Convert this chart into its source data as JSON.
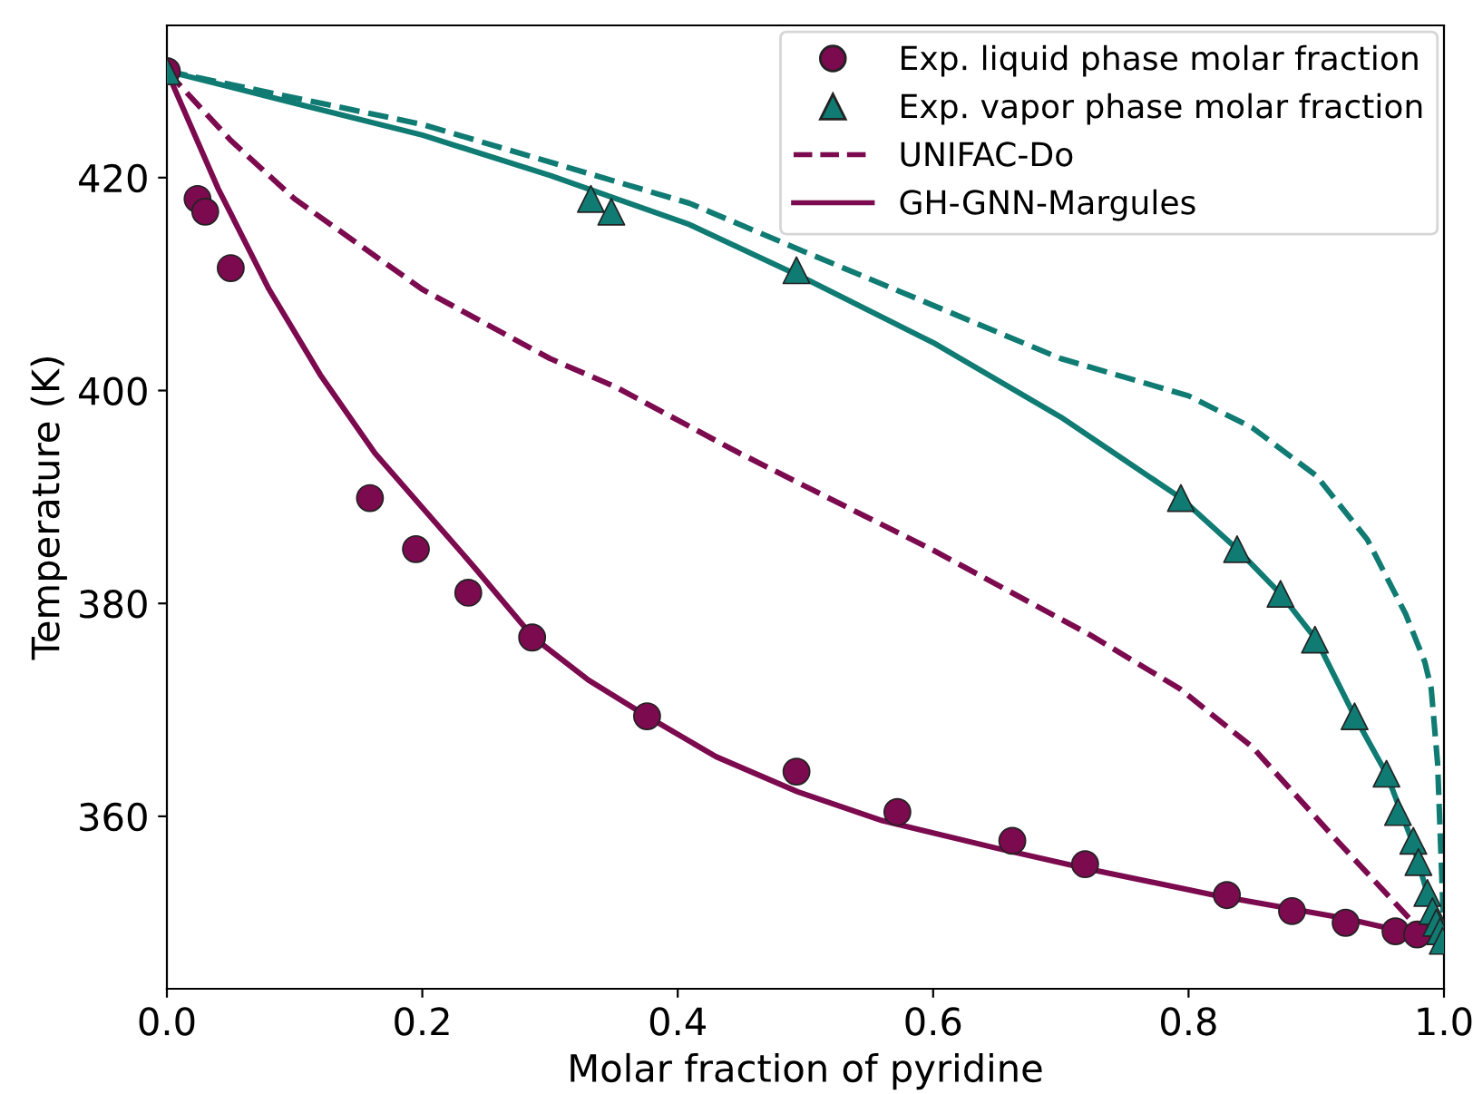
{
  "chart_data": {
    "type": "scatter",
    "xlabel": "Molar fraction of pyridine",
    "ylabel": "Temperature (K)",
    "xlim": [
      0,
      1
    ],
    "xticks": [
      {
        "value": 0,
        "label": "0.0"
      },
      {
        "value": 0.2,
        "label": "0.2"
      },
      {
        "value": 0.4,
        "label": "0.4"
      },
      {
        "value": 0.6,
        "label": "0.6"
      },
      {
        "value": 0.8,
        "label": "0.8"
      },
      {
        "value": 1,
        "label": "1.0"
      }
    ],
    "ylim": [
      343.8,
      434.3
    ],
    "yticks": [
      360,
      380,
      400,
      420
    ],
    "grid": false,
    "legend": "top right",
    "series": [
      {
        "name": "Exp. liquid phase molar fraction",
        "marker": "circle",
        "color": "#7b0a4e",
        "x": [
          0,
          0.024,
          0.03,
          0.05,
          0.159,
          0.195,
          0.236,
          0.286,
          0.376,
          0.493,
          0.572,
          0.662,
          0.719,
          0.83,
          0.881,
          0.923,
          0.962,
          0.979
        ],
        "values": [
          430,
          418.0,
          416.8,
          411.5,
          389.9,
          385.1,
          381.0,
          376.8,
          369.4,
          364.2,
          360.4,
          357.7,
          355.5,
          352.6,
          351.1,
          350.0,
          349.2,
          348.9
        ]
      },
      {
        "name": "Exp. vapor phase molar fraction",
        "marker": "triangle",
        "color": "#0f7b73",
        "x": [
          0,
          0.332,
          0.348,
          0.493,
          0.794,
          0.838,
          0.872,
          0.899,
          0.93,
          0.955,
          0.964,
          0.976,
          0.98,
          0.987,
          0.991,
          0.994,
          0.997,
          0.999
        ],
        "values": [
          430,
          418.0,
          416.8,
          411.3,
          389.9,
          385.1,
          380.9,
          376.6,
          369.4,
          364.0,
          360.4,
          357.7,
          355.7,
          352.8,
          351.1,
          350.0,
          349.2,
          348.3
        ]
      },
      {
        "name": "UNIFAC-Do",
        "type": "line",
        "line_style": "dashed",
        "color": "#7b0a4e",
        "x": [
          0,
          0.05,
          0.1,
          0.2,
          0.3,
          0.352,
          0.447,
          0.5,
          0.6,
          0.722,
          0.793,
          0.85,
          0.911,
          0.973,
          1
        ],
        "values": [
          430,
          423.5,
          418,
          409.5,
          403,
          400.3,
          394.2,
          391,
          385,
          377.1,
          372,
          366.5,
          358.4,
          350.4,
          348.3
        ]
      },
      {
        "type": "line",
        "line_style": "dashed",
        "color": "#0f7b73",
        "x": [
          0,
          0.2,
          0.409,
          0.5,
          0.6,
          0.7,
          0.8,
          0.85,
          0.9,
          0.94,
          0.97,
          0.985,
          0.99,
          0.995,
          0.999,
          1
        ],
        "values": [
          430,
          425,
          417.6,
          413,
          408,
          403,
          399.5,
          396.5,
          392,
          386,
          379,
          374.5,
          372,
          365,
          352,
          348.3
        ]
      },
      {
        "name": "GH-GNN-Margules",
        "type": "line",
        "line_style": "solid",
        "color": "#7b0a4e",
        "x": [
          0,
          0.04,
          0.08,
          0.12,
          0.163,
          0.2,
          0.24,
          0.287,
          0.33,
          0.376,
          0.43,
          0.494,
          0.56,
          0.65,
          0.72,
          0.82,
          0.923,
          1
        ],
        "values": [
          430,
          419,
          409.5,
          401.5,
          394.1,
          389,
          383.5,
          376.8,
          372.8,
          369.4,
          365.6,
          362.3,
          359.6,
          357.0,
          355.1,
          352.6,
          350.4,
          348.3
        ]
      },
      {
        "type": "line",
        "line_style": "solid",
        "color": "#0f7b73",
        "x": [
          0,
          0.1,
          0.2,
          0.3,
          0.409,
          0.5,
          0.6,
          0.7,
          0.794,
          0.838,
          0.872,
          0.9,
          0.93,
          0.955,
          0.975,
          0.99,
          1
        ],
        "values": [
          430,
          427,
          424,
          420.2,
          415.6,
          410.5,
          404.5,
          397.5,
          389.9,
          385.1,
          380.9,
          376.6,
          369.4,
          364,
          357.7,
          351.5,
          348.3
        ]
      }
    ]
  }
}
